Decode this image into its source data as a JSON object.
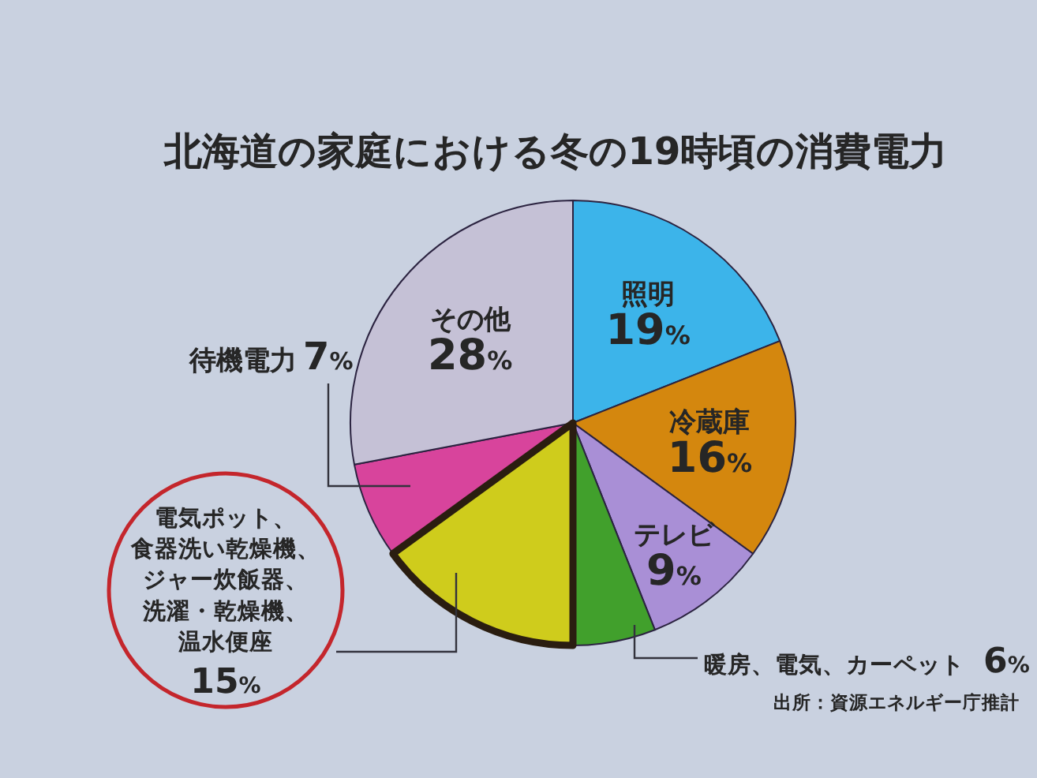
{
  "chart_data": {
    "type": "pie",
    "title": "北海道の家庭における冬の19時頃の消費電力",
    "categories": [
      "照明",
      "冷蔵庫",
      "テレビ",
      "暖房、電気、カーペット",
      "電気ポット、食器洗い乾燥機、ジャー炊飯器、洗濯・乾燥機、温水便座",
      "待機電力",
      "その他"
    ],
    "values": [
      19,
      16,
      9,
      6,
      15,
      7,
      28
    ],
    "colors": [
      "#3cb4ea",
      "#d4870e",
      "#a98fd6",
      "#41a02c",
      "#cfcc1c",
      "#d8449c",
      "#c5c1d6"
    ],
    "value_labels": [
      "19%",
      "16%",
      "9%",
      "6%",
      "15%",
      "7%",
      "28%"
    ],
    "annotations": [
      "出所：資源エネルギー庁推計"
    ]
  }
}
